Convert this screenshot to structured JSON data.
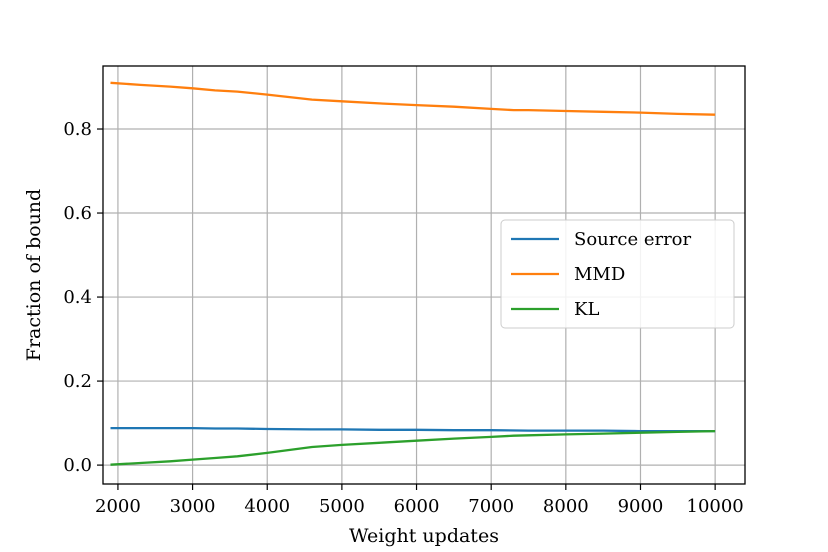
{
  "chart_data": {
    "type": "line",
    "xlabel": "Weight updates",
    "ylabel": "Fraction of bound",
    "xlim": [
      1800,
      10400
    ],
    "ylim": [
      -0.045,
      0.95
    ],
    "xticks": [
      2000,
      3000,
      4000,
      5000,
      6000,
      7000,
      8000,
      9000,
      10000
    ],
    "yticks": [
      0.0,
      0.2,
      0.4,
      0.6,
      0.8
    ],
    "ytick_labels": [
      "0.0",
      "0.2",
      "0.4",
      "0.6",
      "0.8"
    ],
    "grid": true,
    "legend_position": "center-right",
    "series": [
      {
        "name": "Source error",
        "color": "#1f77b4",
        "x": [
          1900,
          2300,
          2700,
          3000,
          3300,
          3600,
          4000,
          4600,
          5000,
          5500,
          6000,
          6500,
          7000,
          7500,
          8000,
          8500,
          9000,
          9500,
          10000
        ],
        "y": [
          0.088,
          0.088,
          0.088,
          0.088,
          0.087,
          0.087,
          0.086,
          0.085,
          0.085,
          0.084,
          0.084,
          0.083,
          0.083,
          0.082,
          0.082,
          0.082,
          0.081,
          0.081,
          0.081
        ]
      },
      {
        "name": "MMD",
        "color": "#ff7f0e",
        "x": [
          1900,
          2300,
          2700,
          3000,
          3300,
          3600,
          4000,
          4600,
          5000,
          5500,
          6000,
          6500,
          7000,
          7300,
          7500,
          8000,
          8500,
          9000,
          9500,
          10000
        ],
        "y": [
          0.91,
          0.905,
          0.901,
          0.897,
          0.892,
          0.889,
          0.882,
          0.87,
          0.866,
          0.861,
          0.857,
          0.853,
          0.848,
          0.845,
          0.845,
          0.843,
          0.841,
          0.839,
          0.836,
          0.834
        ]
      },
      {
        "name": "KL",
        "color": "#2ca02c",
        "x": [
          1900,
          2300,
          2700,
          3000,
          3300,
          3600,
          4000,
          4600,
          5000,
          5500,
          6000,
          6500,
          7000,
          7300,
          7500,
          8000,
          8500,
          9000,
          9500,
          10000
        ],
        "y": [
          0.001,
          0.005,
          0.009,
          0.013,
          0.017,
          0.021,
          0.029,
          0.043,
          0.048,
          0.053,
          0.058,
          0.063,
          0.067,
          0.07,
          0.071,
          0.073,
          0.075,
          0.077,
          0.079,
          0.081
        ]
      }
    ]
  }
}
